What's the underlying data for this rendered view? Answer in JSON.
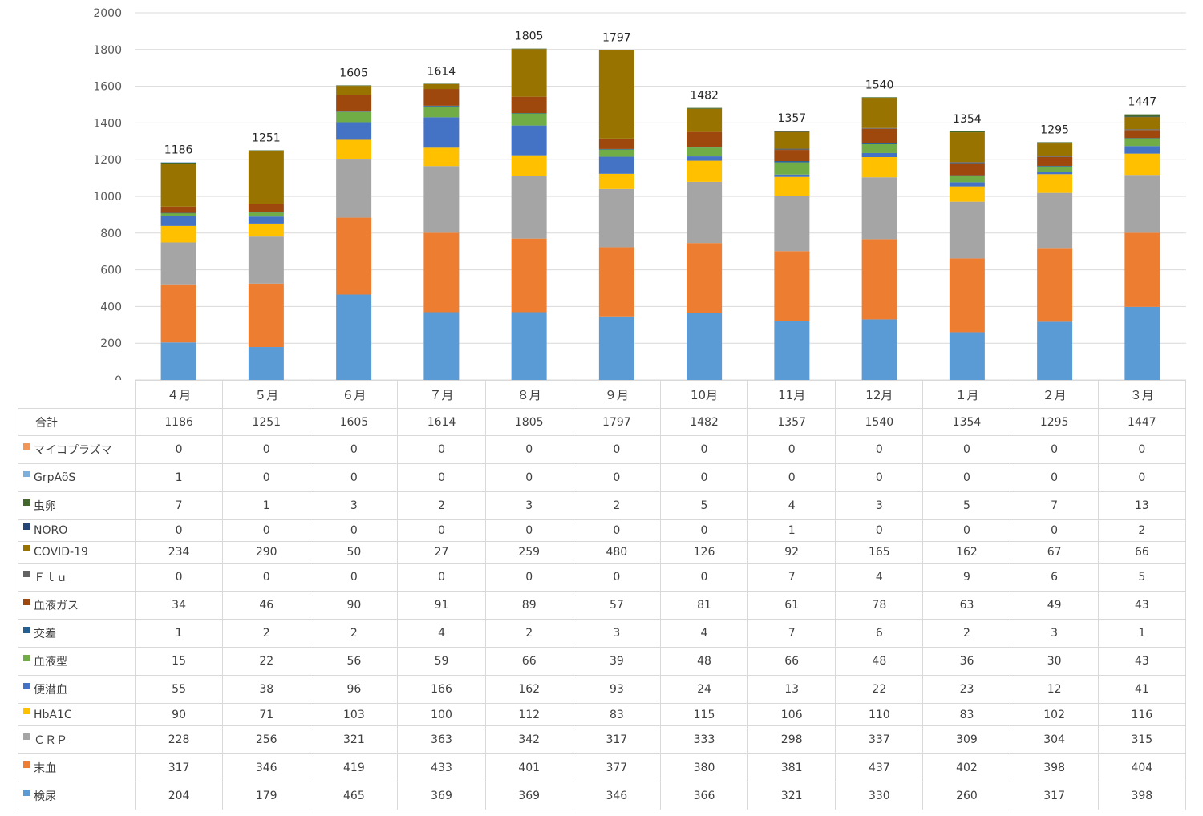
{
  "chart_data": {
    "type": "bar",
    "stacked": true,
    "ylim": [
      0,
      2000
    ],
    "yticks": [
      0,
      200,
      400,
      600,
      800,
      1000,
      1200,
      1400,
      1600,
      1800,
      2000
    ],
    "grid": true,
    "categories": [
      "４月",
      "５月",
      "６月",
      "７月",
      "８月",
      "９月",
      "10月",
      "11月",
      "12月",
      "１月",
      "２月",
      "３月"
    ],
    "totals_label": "合計",
    "totals": [
      1186,
      1251,
      1605,
      1614,
      1805,
      1797,
      1482,
      1357,
      1540,
      1354,
      1295,
      1447
    ],
    "series": [
      {
        "name": "検尿",
        "color": "#5b9bd5",
        "values": [
          204,
          179,
          465,
          369,
          369,
          346,
          366,
          321,
          330,
          260,
          317,
          398
        ]
      },
      {
        "name": "末血",
        "color": "#ed7d31",
        "values": [
          317,
          346,
          419,
          433,
          401,
          377,
          380,
          381,
          437,
          402,
          398,
          404
        ]
      },
      {
        "name": "ＣＲＰ",
        "color": "#a5a5a5",
        "values": [
          228,
          256,
          321,
          363,
          342,
          317,
          333,
          298,
          337,
          309,
          304,
          315
        ]
      },
      {
        "name": "HbA1C",
        "color": "#ffc000",
        "values": [
          90,
          71,
          103,
          100,
          112,
          83,
          115,
          106,
          110,
          83,
          102,
          116
        ]
      },
      {
        "name": "便潜血",
        "color": "#4472c4",
        "values": [
          55,
          38,
          96,
          166,
          162,
          93,
          24,
          13,
          22,
          23,
          12,
          41
        ]
      },
      {
        "name": "血液型",
        "color": "#70ad47",
        "values": [
          15,
          22,
          56,
          59,
          66,
          39,
          48,
          66,
          48,
          36,
          30,
          43
        ]
      },
      {
        "name": "交差",
        "color": "#255e91",
        "values": [
          1,
          2,
          2,
          4,
          2,
          3,
          4,
          7,
          6,
          2,
          3,
          1
        ]
      },
      {
        "name": "血液ガス",
        "color": "#9e480e",
        "values": [
          34,
          46,
          90,
          91,
          89,
          57,
          81,
          61,
          78,
          63,
          49,
          43
        ]
      },
      {
        "name": "Ｆｌｕ",
        "color": "#636363",
        "values": [
          0,
          0,
          0,
          0,
          0,
          0,
          0,
          7,
          4,
          9,
          6,
          5
        ]
      },
      {
        "name": "COVID-19",
        "color": "#997300",
        "values": [
          234,
          290,
          50,
          27,
          259,
          480,
          126,
          92,
          165,
          162,
          67,
          66
        ]
      },
      {
        "name": "NORO",
        "color": "#264478",
        "values": [
          0,
          0,
          0,
          0,
          0,
          0,
          0,
          1,
          0,
          0,
          0,
          2
        ]
      },
      {
        "name": "虫卵",
        "color": "#43682b",
        "values": [
          7,
          1,
          3,
          2,
          3,
          2,
          5,
          4,
          3,
          5,
          7,
          13
        ]
      },
      {
        "name": "GrpAõS",
        "color": "#7cafdd",
        "values": [
          1,
          0,
          0,
          0,
          0,
          0,
          0,
          0,
          0,
          0,
          0,
          0
        ]
      },
      {
        "name": "マイコプラズマ",
        "color": "#f1975a",
        "values": [
          0,
          0,
          0,
          0,
          0,
          0,
          0,
          0,
          0,
          0,
          0,
          0
        ]
      }
    ]
  }
}
